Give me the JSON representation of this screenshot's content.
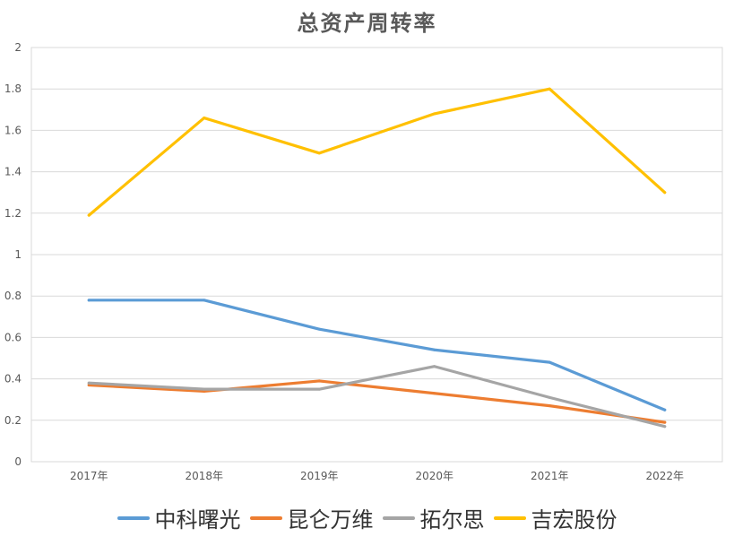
{
  "chart_data": {
    "type": "line",
    "title": "总资产周转率",
    "categories": [
      "2017年",
      "2018年",
      "2019年",
      "2020年",
      "2021年",
      "2022年"
    ],
    "ylim": [
      0,
      2
    ],
    "yticks": [
      "0",
      "0.2",
      "0.4",
      "0.6",
      "0.8",
      "1",
      "1.2",
      "1.4",
      "1.6",
      "1.8",
      "2"
    ],
    "grid": true,
    "legend_position": "bottom",
    "series": [
      {
        "name": "中科曙光",
        "color": "#5B9BD5",
        "values": [
          0.78,
          0.78,
          0.64,
          0.54,
          0.48,
          0.25
        ]
      },
      {
        "name": "昆仑万维",
        "color": "#ED7D31",
        "values": [
          0.37,
          0.34,
          0.39,
          0.33,
          0.27,
          0.19
        ]
      },
      {
        "name": "拓尔思",
        "color": "#A5A5A5",
        "values": [
          0.38,
          0.35,
          0.35,
          0.46,
          0.31,
          0.17
        ]
      },
      {
        "name": "吉宏股份",
        "color": "#FFC000",
        "values": [
          1.19,
          1.66,
          1.49,
          1.68,
          1.8,
          1.3
        ]
      }
    ]
  }
}
